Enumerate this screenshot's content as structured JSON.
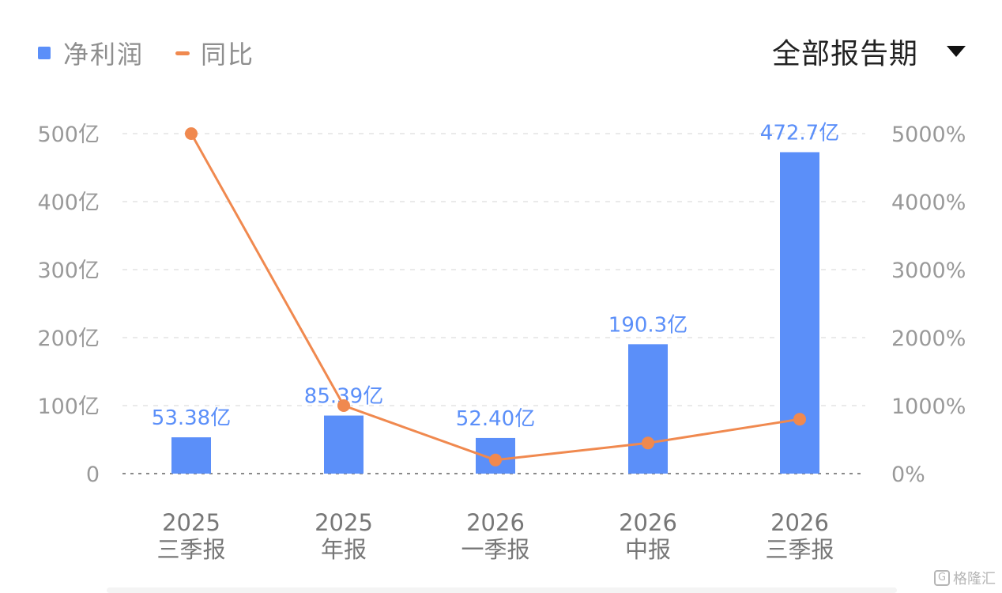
{
  "legend": {
    "bar_label": "净利润",
    "line_label": "同比"
  },
  "period_selector": {
    "label": "全部报告期",
    "icon": "caret-down-icon"
  },
  "watermark": {
    "logo_letter": "G",
    "text": "格隆汇"
  },
  "colors": {
    "bar": "#5b8ff9",
    "line": "#f0894f",
    "grid": "#e3e3e3",
    "axis_text": "#999999",
    "bar_label_text": "#5b8ff9",
    "category_text": "#777777"
  },
  "chart_data": {
    "type": "bar",
    "categories": [
      [
        "2025",
        "三季报"
      ],
      [
        "2025",
        "年报"
      ],
      [
        "2026",
        "一季报"
      ],
      [
        "2026",
        "中报"
      ],
      [
        "2026",
        "三季报"
      ]
    ],
    "series": [
      {
        "name": "净利润",
        "type": "bar",
        "axis": "left",
        "values": [
          53.38,
          85.39,
          52.4,
          190.3,
          472.7
        ],
        "labels": [
          "53.38亿",
          "85.39亿",
          "52.40亿",
          "190.3亿",
          "472.7亿"
        ]
      },
      {
        "name": "同比",
        "type": "line",
        "axis": "right",
        "values": [
          5000,
          1000,
          200,
          450,
          800
        ]
      }
    ],
    "y_left": {
      "ticks": [
        0,
        100,
        200,
        300,
        400,
        500
      ],
      "tick_labels": [
        "0",
        "100亿",
        "200亿",
        "300亿",
        "400亿",
        "500亿"
      ],
      "ylim": [
        0,
        500
      ]
    },
    "y_right": {
      "ticks": [
        0,
        1000,
        2000,
        3000,
        4000,
        5000
      ],
      "tick_labels": [
        "0%",
        "1000%",
        "2000%",
        "3000%",
        "4000%",
        "5000%"
      ],
      "ylim": [
        0,
        5000
      ]
    },
    "grid": true,
    "legend_position": "top-left"
  }
}
